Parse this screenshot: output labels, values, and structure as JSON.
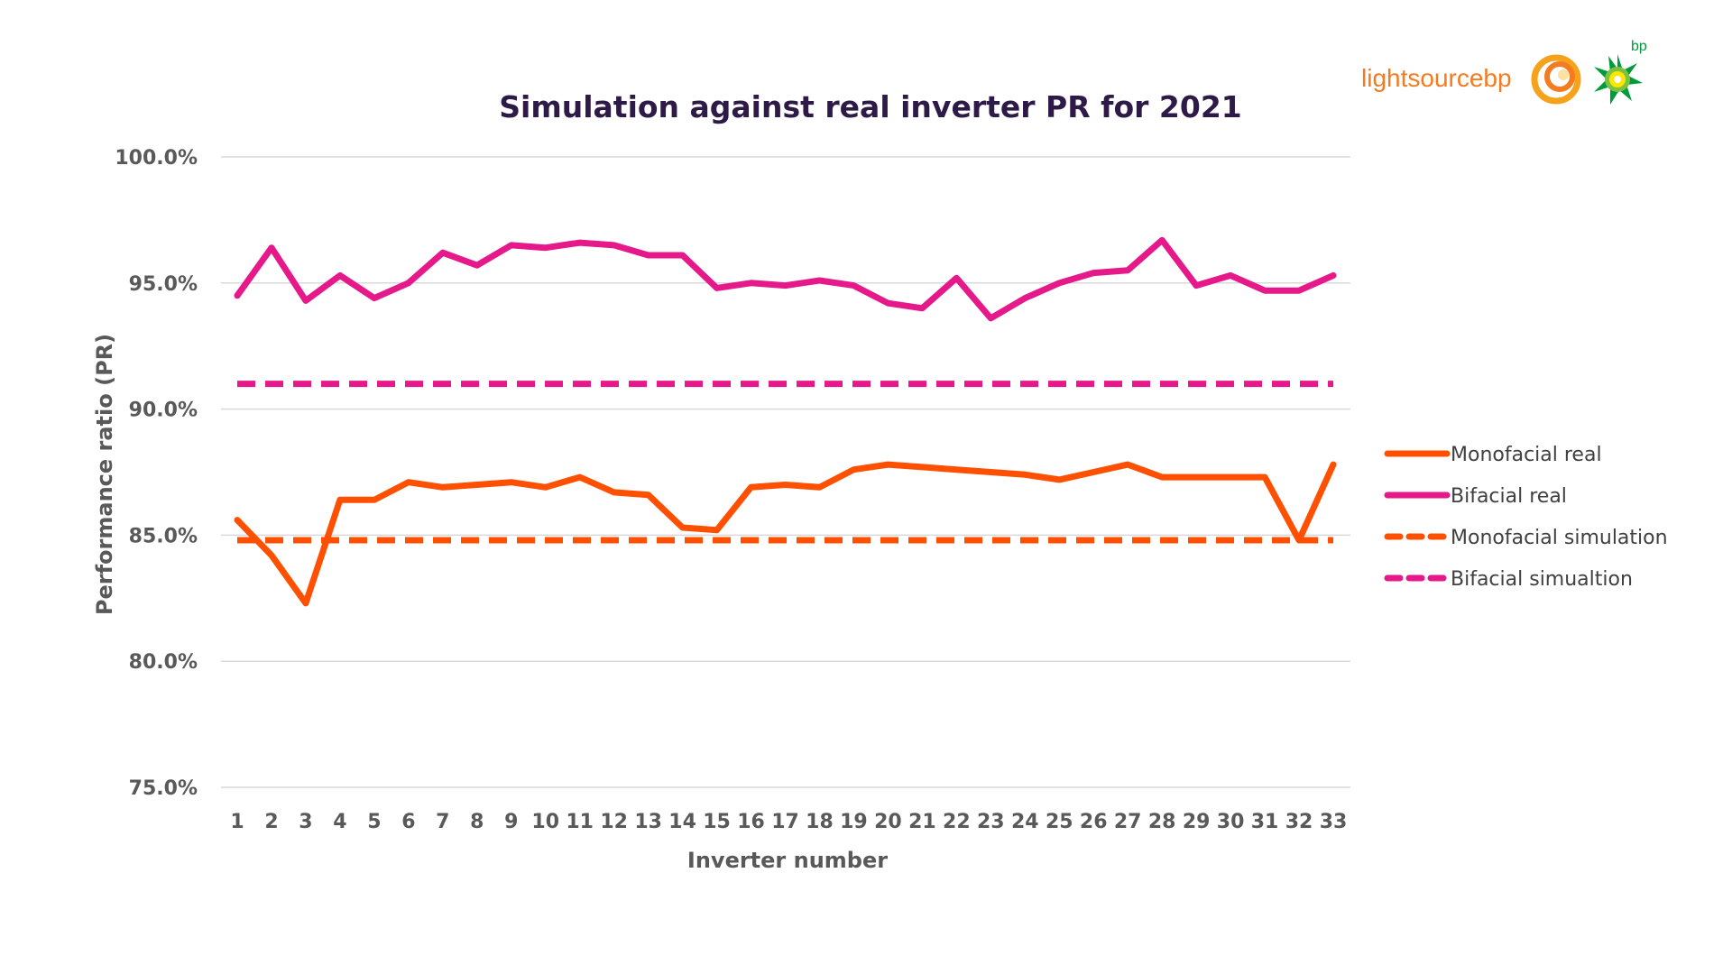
{
  "logo": {
    "brand_light": "lightsource",
    "brand_bp": "bp",
    "bp_mark": "bp",
    "brand_orange": "#f47b20",
    "brand_green": "#009b3a",
    "brand_yellow": "#ffe600"
  },
  "chart_data": {
    "type": "line",
    "title": "Simulation against real inverter PR for 2021",
    "xlabel": "Inverter number",
    "ylabel": "Performance ratio (PR)",
    "ylim": [
      75.0,
      100.0
    ],
    "yticks": [
      75.0,
      80.0,
      85.0,
      90.0,
      95.0,
      100.0
    ],
    "ytick_labels": [
      "75.0%",
      "80.0%",
      "85.0%",
      "90.0%",
      "95.0%",
      "100.0%"
    ],
    "grid": "horizontal",
    "legend_position": "right",
    "categories": [
      "1",
      "2",
      "3",
      "4",
      "5",
      "6",
      "7",
      "8",
      "9",
      "10",
      "11",
      "12",
      "13",
      "14",
      "15",
      "16",
      "17",
      "18",
      "19",
      "20",
      "21",
      "22",
      "23",
      "24",
      "25",
      "26",
      "27",
      "28",
      "29",
      "30",
      "31",
      "32",
      "33"
    ],
    "series": [
      {
        "name": "Monofacial real",
        "color": "#fe5000",
        "dash": "solid",
        "values": [
          85.6,
          84.2,
          82.3,
          86.4,
          86.4,
          87.1,
          86.9,
          87.0,
          87.1,
          86.9,
          87.3,
          86.7,
          86.6,
          85.3,
          85.2,
          86.9,
          87.0,
          86.9,
          87.6,
          87.8,
          87.7,
          87.6,
          87.5,
          87.4,
          87.2,
          87.5,
          87.8,
          87.3,
          87.3,
          87.3,
          87.3,
          84.8,
          87.8
        ]
      },
      {
        "name": "Bifacial real",
        "color": "#e6198a",
        "dash": "solid",
        "values": [
          94.5,
          96.4,
          94.3,
          95.3,
          94.4,
          95.0,
          96.2,
          95.7,
          96.5,
          96.4,
          96.6,
          96.5,
          96.1,
          96.1,
          94.8,
          95.0,
          94.9,
          95.1,
          94.9,
          94.2,
          94.0,
          95.2,
          93.6,
          94.4,
          95.0,
          95.4,
          95.5,
          96.7,
          94.9,
          95.3,
          94.7,
          94.7,
          95.3
        ]
      },
      {
        "name": "Monofacial simulation",
        "color": "#fe5000",
        "dash": "dashed",
        "values": [
          84.8,
          84.8,
          84.8,
          84.8,
          84.8,
          84.8,
          84.8,
          84.8,
          84.8,
          84.8,
          84.8,
          84.8,
          84.8,
          84.8,
          84.8,
          84.8,
          84.8,
          84.8,
          84.8,
          84.8,
          84.8,
          84.8,
          84.8,
          84.8,
          84.8,
          84.8,
          84.8,
          84.8,
          84.8,
          84.8,
          84.8,
          84.8,
          84.8
        ]
      },
      {
        "name": "Bifacial simualtion",
        "color": "#e6198a",
        "dash": "dashed",
        "values": [
          91.0,
          91.0,
          91.0,
          91.0,
          91.0,
          91.0,
          91.0,
          91.0,
          91.0,
          91.0,
          91.0,
          91.0,
          91.0,
          91.0,
          91.0,
          91.0,
          91.0,
          91.0,
          91.0,
          91.0,
          91.0,
          91.0,
          91.0,
          91.0,
          91.0,
          91.0,
          91.0,
          91.0,
          91.0,
          91.0,
          91.0,
          91.0,
          91.0
        ]
      }
    ]
  }
}
